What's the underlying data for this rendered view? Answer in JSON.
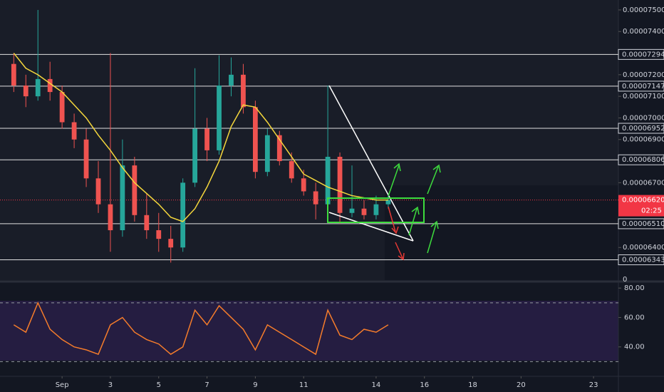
{
  "chart_data": {
    "type": "candlestick",
    "xlim": [
      -1.57,
      24.03
    ],
    "xticks": [
      {
        "value": 1,
        "label": "Sep"
      },
      3,
      5,
      7,
      9,
      11,
      14,
      16,
      18,
      20,
      23
    ],
    "ylim": [
      6.249e-05,
      7.546e-05
    ],
    "yticks": [
      {
        "value": 6.4e-05,
        "label": "0.00006400"
      },
      {
        "value": 6.7e-05,
        "label": "0.00006700"
      },
      {
        "value": 6.9e-05,
        "label": "0.00006900"
      },
      {
        "value": 7e-05,
        "label": "0.00007000"
      },
      {
        "value": 7.1e-05,
        "label": "0.00007100"
      },
      {
        "value": 7.2e-05,
        "label": "0.00007200"
      },
      {
        "value": 7.4e-05,
        "label": "0.00007400"
      },
      {
        "value": 7.5e-05,
        "label": "0.00007500"
      }
    ],
    "volume_label": "0",
    "levels": [
      {
        "value": 7.294e-05,
        "label": "0.00007294"
      },
      {
        "value": 7.147e-05,
        "label": "0.00007147"
      },
      {
        "value": 6.952e-05,
        "label": "0.00006952"
      },
      {
        "value": 6.806e-05,
        "label": "0.00006806"
      },
      {
        "value": 6.51e-05,
        "label": "0.00006510"
      },
      {
        "value": 6.343e-05,
        "label": "0.00006343"
      }
    ],
    "last_price": {
      "value": 6.62e-05,
      "label": "0.00006620",
      "countdown": "02:25",
      "color": "#f23645"
    },
    "up_color": "#26a69a",
    "down_color": "#ef5350",
    "ma_color": "#f5d73c",
    "rsi_color": "#f57c2b",
    "x": [
      -1,
      -0.5,
      0,
      0.5,
      1,
      1.5,
      2,
      2.5,
      3,
      3.5,
      4,
      4.5,
      5,
      5.5,
      6,
      6.5,
      7,
      7.5,
      8,
      8.5,
      9,
      9.5,
      10,
      10.5,
      11,
      11.5,
      12,
      12.5,
      13,
      13.5,
      14,
      14.5
    ],
    "open": [
      7.25e-05,
      7.15e-05,
      7.1e-05,
      7.18e-05,
      7.12e-05,
      6.98e-05,
      6.9e-05,
      6.72e-05,
      6.6e-05,
      6.48e-05,
      6.78e-05,
      6.55e-05,
      6.48e-05,
      6.44e-05,
      6.4e-05,
      6.7e-05,
      6.95e-05,
      6.85e-05,
      7.15e-05,
      7.2e-05,
      7.05e-05,
      6.75e-05,
      6.92e-05,
      6.8e-05,
      6.72e-05,
      6.66e-05,
      6.6e-05,
      6.82e-05,
      6.56e-05,
      6.58e-05,
      6.55e-05,
      6.6e-05
    ],
    "high": [
      7.3e-05,
      7.2e-05,
      7.5e-05,
      7.26e-05,
      7.15e-05,
      7.02e-05,
      6.95e-05,
      6.8e-05,
      7.3e-05,
      6.9e-05,
      6.82e-05,
      6.65e-05,
      6.56e-05,
      6.5e-05,
      6.72e-05,
      7.23e-05,
      7e-05,
      7.29e-05,
      7.28e-05,
      7.25e-05,
      7.08e-05,
      6.95e-05,
      6.94e-05,
      6.84e-05,
      6.76e-05,
      6.7e-05,
      7.15e-05,
      6.84e-05,
      6.78e-05,
      6.62e-05,
      6.64e-05,
      6.65e-05
    ],
    "low": [
      7.12e-05,
      7.05e-05,
      7.08e-05,
      7.08e-05,
      6.95e-05,
      6.86e-05,
      6.68e-05,
      6.56e-05,
      6.38e-05,
      6.45e-05,
      6.52e-05,
      6.44e-05,
      6.38e-05,
      6.33e-05,
      6.38e-05,
      6.68e-05,
      6.8e-05,
      6.83e-05,
      7.1e-05,
      7.02e-05,
      6.72e-05,
      6.73e-05,
      6.78e-05,
      6.7e-05,
      6.64e-05,
      6.53e-05,
      6.58e-05,
      6.51e-05,
      6.54e-05,
      6.53e-05,
      6.53e-05,
      6.58e-05
    ],
    "close": [
      7.15e-05,
      7.1e-05,
      7.18e-05,
      7.12e-05,
      6.98e-05,
      6.9e-05,
      6.72e-05,
      6.6e-05,
      6.48e-05,
      6.78e-05,
      6.55e-05,
      6.48e-05,
      6.44e-05,
      6.4e-05,
      6.7e-05,
      6.95e-05,
      6.85e-05,
      7.15e-05,
      7.2e-05,
      7.05e-05,
      6.75e-05,
      6.92e-05,
      6.8e-05,
      6.72e-05,
      6.66e-05,
      6.6e-05,
      6.82e-05,
      6.56e-05,
      6.58e-05,
      6.55e-05,
      6.6e-05,
      6.62e-05
    ],
    "ma": [
      7.3e-05,
      7.23e-05,
      7.2e-05,
      7.16e-05,
      7.12e-05,
      7.06e-05,
      7e-05,
      6.92e-05,
      6.85e-05,
      6.77e-05,
      6.7e-05,
      6.65e-05,
      6.6e-05,
      6.54e-05,
      6.52e-05,
      6.58e-05,
      6.68e-05,
      6.8e-05,
      6.96e-05,
      7.06e-05,
      7.05e-05,
      6.98e-05,
      6.9e-05,
      6.82e-05,
      6.74e-05,
      6.71e-05,
      6.68e-05,
      6.66e-05,
      6.64e-05,
      6.63e-05,
      6.62e-05,
      6.62e-05
    ],
    "rsi": [
      55,
      50,
      70,
      52,
      45,
      40,
      38,
      35,
      55,
      60,
      50,
      45,
      42,
      35,
      40,
      65,
      55,
      68,
      60,
      52,
      38,
      55,
      50,
      45,
      40,
      35,
      65,
      48,
      45,
      52,
      50,
      55
    ],
    "rsi_ylim": [
      20,
      83
    ],
    "rsi_yticks": [
      {
        "value": 40,
        "label": "40.00"
      },
      {
        "value": 60,
        "label": "60.00"
      },
      {
        "value": 80,
        "label": "80.00"
      }
    ],
    "rsi_bands": [
      30,
      70
    ]
  }
}
